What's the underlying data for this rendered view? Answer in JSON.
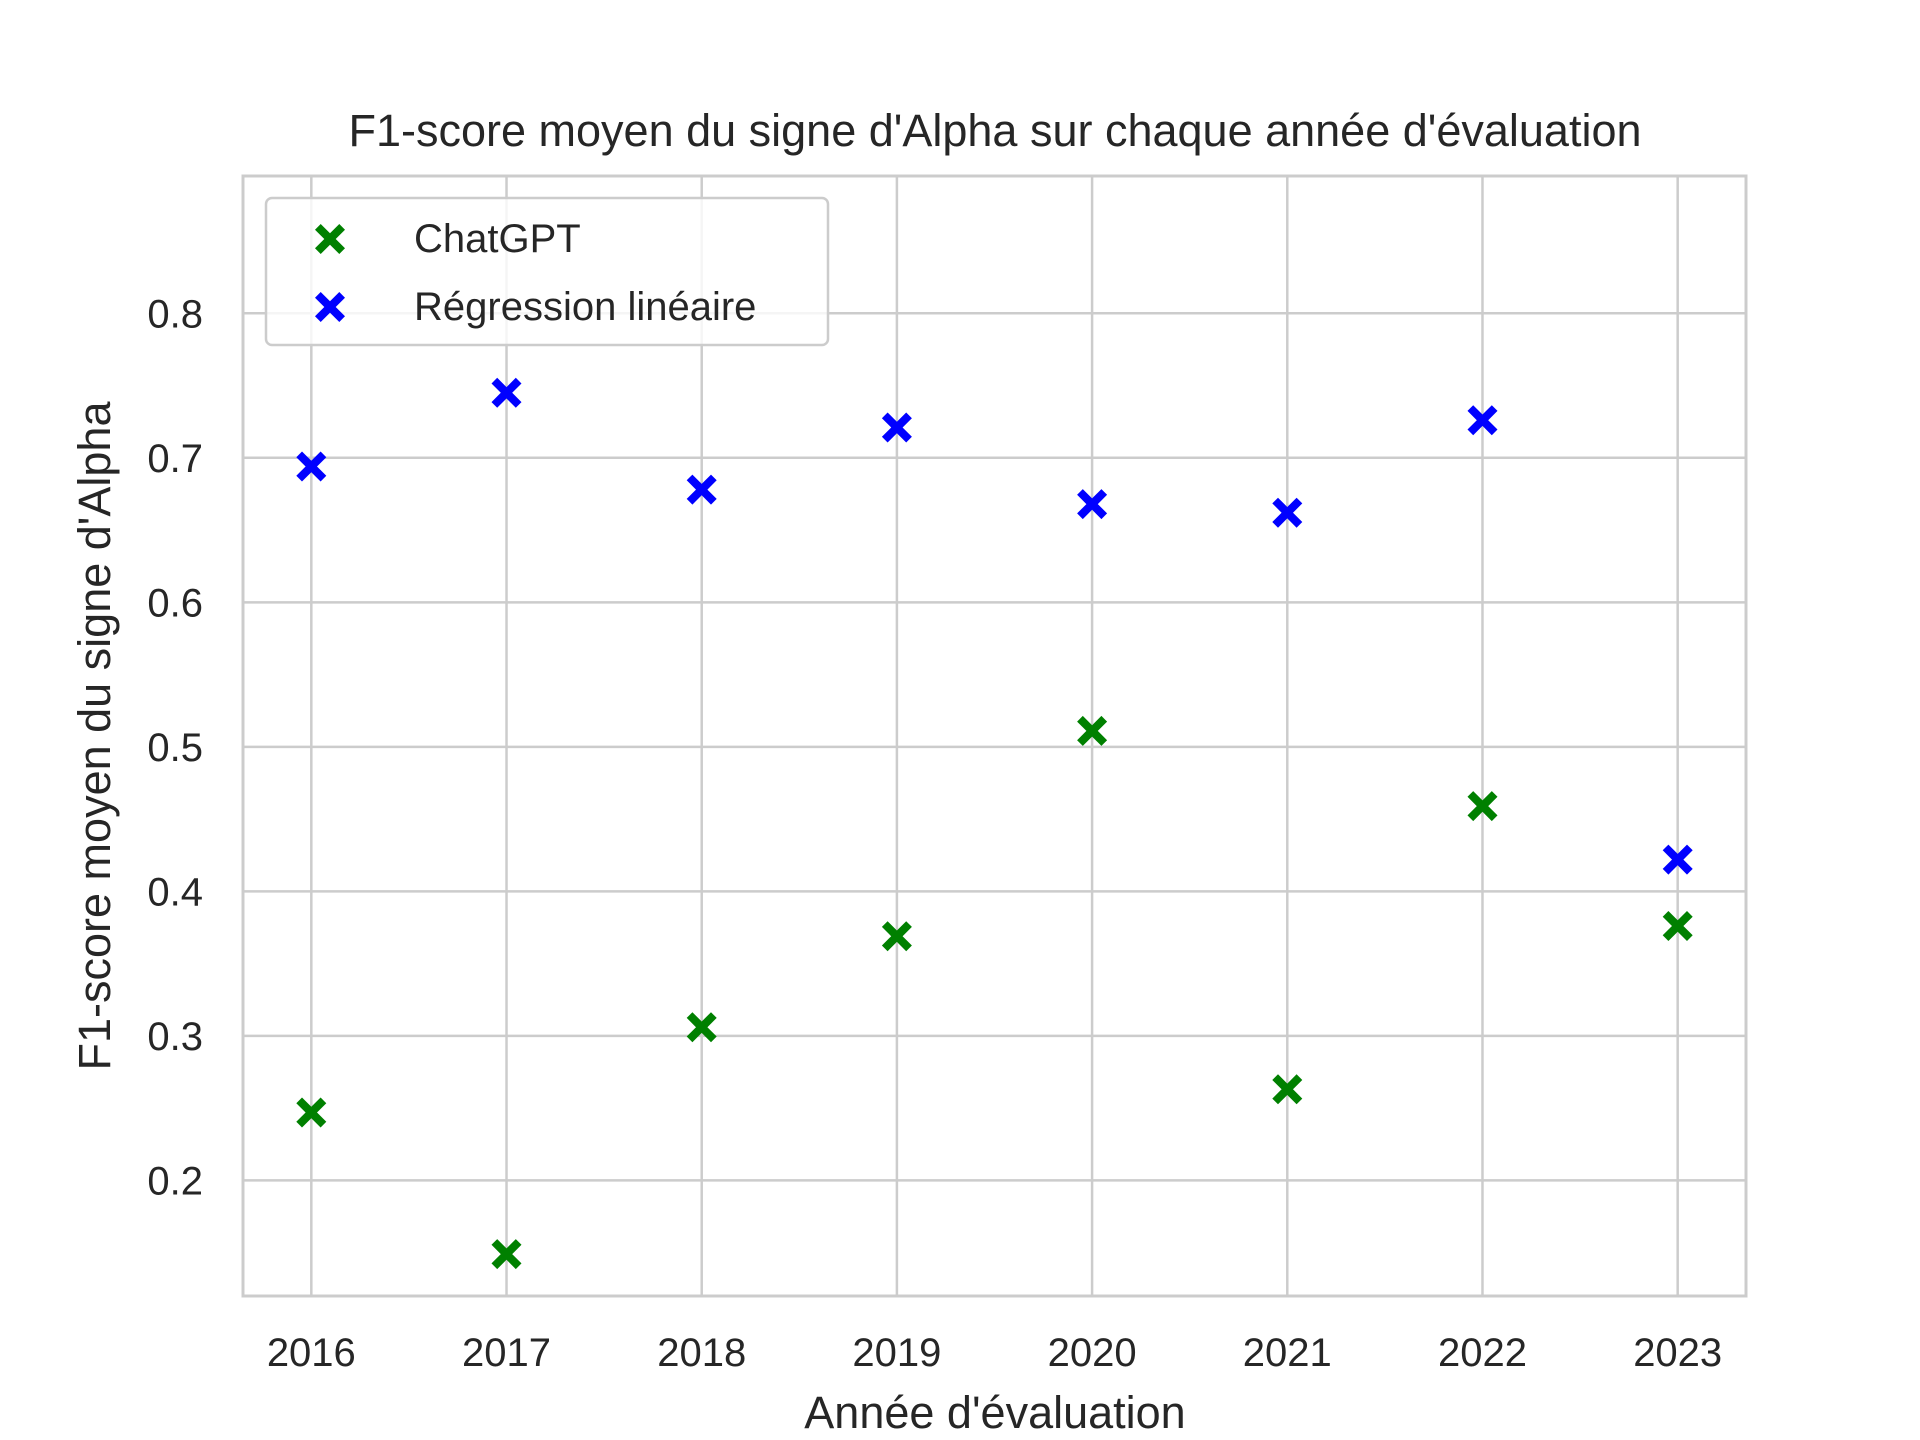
{
  "chart_data": {
    "type": "scatter",
    "title": "F1-score moyen du signe d'Alpha sur chaque année d'évaluation",
    "xlabel": "Année d'évaluation",
    "ylabel": "F1-score moyen du signe d'Alpha",
    "x": [
      2016,
      2017,
      2018,
      2019,
      2020,
      2021,
      2022,
      2023
    ],
    "xticks": [
      "2016",
      "2017",
      "2018",
      "2019",
      "2020",
      "2021",
      "2022",
      "2023"
    ],
    "xlim": [
      2015.65,
      2023.35
    ],
    "ylim": [
      0.12,
      0.895
    ],
    "yticks": [
      "0.2",
      "0.3",
      "0.4",
      "0.5",
      "0.6",
      "0.7",
      "0.8"
    ],
    "grid": true,
    "marker": "X",
    "legend_position": "top-left",
    "series": [
      {
        "name": "ChatGPT",
        "color": "#008000",
        "values": [
          0.247,
          0.149,
          0.306,
          0.369,
          0.511,
          0.263,
          0.459,
          0.376
        ]
      },
      {
        "name": "Régression linéaire",
        "color": "#0000ff",
        "values": [
          0.694,
          0.745,
          0.678,
          0.721,
          0.668,
          0.662,
          0.726,
          0.422
        ]
      }
    ]
  }
}
